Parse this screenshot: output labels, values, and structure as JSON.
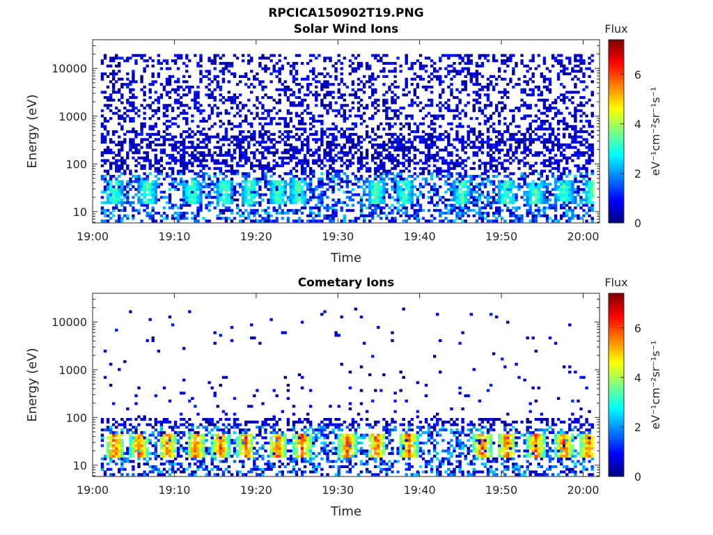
{
  "figure_title": "RPCICA150902T19.PNG",
  "chart_data": [
    {
      "type": "heatmap",
      "title": "Solar Wind Ions",
      "xlabel": "Time",
      "ylabel": "Energy (eV)",
      "x_tick_labels": [
        "19:00",
        "19:10",
        "19:20",
        "19:30",
        "19:40",
        "19:50",
        "20:00"
      ],
      "x_range_minutes": [
        0,
        62
      ],
      "y_tick_values": [
        10,
        100,
        1000,
        10000
      ],
      "y_tick_labels": [
        "10",
        "100",
        "1000",
        "10000"
      ],
      "y_scale": "log",
      "ylim": [
        5.8,
        40000
      ],
      "colorbar": {
        "label": "Flux",
        "units": "eV⁻¹cm⁻²sr⁻¹s⁻¹",
        "ticks": [
          "0",
          "2",
          "4",
          "6"
        ],
        "range": [
          0,
          7.4
        ],
        "colormap": "jet"
      },
      "pattern": {
        "description": "sparse low counts across all energies, higher flux at 10-40 eV",
        "noise_density_high_energy": 0.32,
        "noise_density_low_energy": 0.45,
        "burst_minutes": [
          2.5,
          6.5,
          12,
          16,
          19,
          22.5,
          25,
          34.5,
          38,
          45,
          50.5,
          54,
          57.5,
          61
        ],
        "burst_peak_flux": 3.9,
        "energy_range_ev": [
          6,
          20000
        ]
      }
    },
    {
      "type": "heatmap",
      "title": "Cometary Ions",
      "xlabel": "Time",
      "ylabel": "Energy (eV)",
      "x_tick_labels": [
        "19:00",
        "19:10",
        "19:20",
        "19:30",
        "19:40",
        "19:50",
        "20:00"
      ],
      "x_range_minutes": [
        0,
        62
      ],
      "y_tick_values": [
        10,
        100,
        1000,
        10000
      ],
      "y_tick_labels": [
        "10",
        "100",
        "1000",
        "10000"
      ],
      "y_scale": "log",
      "ylim": [
        5.8,
        40000
      ],
      "colorbar": {
        "label": "Flux",
        "units": "eV⁻¹cm⁻²sr⁻¹s⁻¹",
        "ticks": [
          "0",
          "2",
          "4",
          "6"
        ],
        "range": [
          0,
          7.4
        ],
        "colormap": "jet"
      },
      "pattern": {
        "description": "periodic high-flux bursts at 15-40 eV with sparse high-energy counts",
        "noise_density_high_energy": 0.02,
        "noise_density_low_energy": 0.38,
        "burst_minutes": [
          2.5,
          5.5,
          9,
          12.5,
          15.5,
          18.5,
          22.5,
          25.5,
          31,
          34.5,
          38.5,
          47.5,
          50.5,
          54,
          57.5,
          60.5
        ],
        "burst_peak_flux": 6.6,
        "energy_range_ev": [
          6,
          20000
        ]
      }
    }
  ]
}
